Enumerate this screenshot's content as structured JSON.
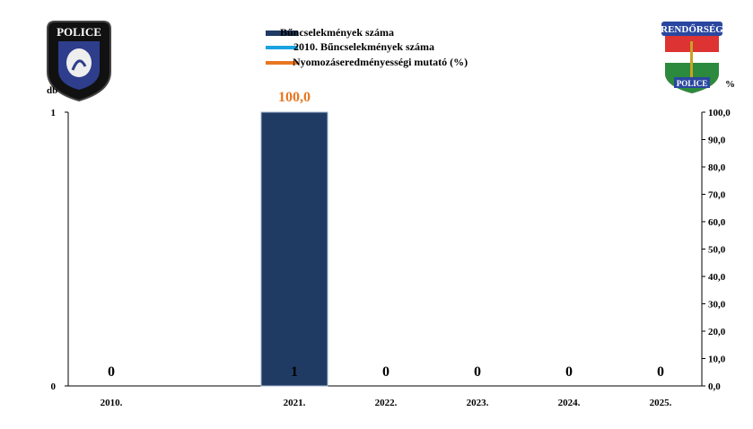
{
  "chart_data": {
    "type": "bar",
    "title": "",
    "y_left_label": "db",
    "y_right_label": "%",
    "categories": [
      "2010.",
      "2021.",
      "2022.",
      "2023.",
      "2024.",
      "2025."
    ],
    "series": [
      {
        "name": "Bűncselekmények száma",
        "kind": "bar",
        "color": "#1f3b63",
        "values": [
          0,
          1,
          0,
          0,
          0,
          0
        ]
      },
      {
        "name": "2010. Bűncselekmények száma",
        "kind": "line",
        "color": "#1aa3e0",
        "values": [
          0,
          0,
          0,
          0,
          0,
          0
        ]
      },
      {
        "name": "Nyomozáseredményességi mutató (%)",
        "kind": "line",
        "color": "#e87722",
        "values": [
          null,
          100,
          null,
          null,
          null,
          null
        ]
      }
    ],
    "bar_labels": [
      "0",
      "1",
      "0",
      "0",
      "0",
      "0"
    ],
    "rate_label": "100,0",
    "y_left_ticks": [
      "0",
      "1"
    ],
    "y_left_lim": [
      0,
      1
    ],
    "y_right_ticks": [
      "0,0",
      "10,0",
      "20,0",
      "30,0",
      "40,0",
      "50,0",
      "60,0",
      "70,0",
      "80,0",
      "90,0",
      "100,0"
    ],
    "y_right_lim": [
      0,
      100
    ],
    "legend_position": "top-center",
    "grid": false
  },
  "logos": {
    "left": {
      "icon": "police-county-badge",
      "text": "POLICE"
    },
    "right": {
      "icon": "rendorseg-shield",
      "text_top": "RENDŐRSÉG",
      "text_bottom": "POLICE"
    }
  }
}
